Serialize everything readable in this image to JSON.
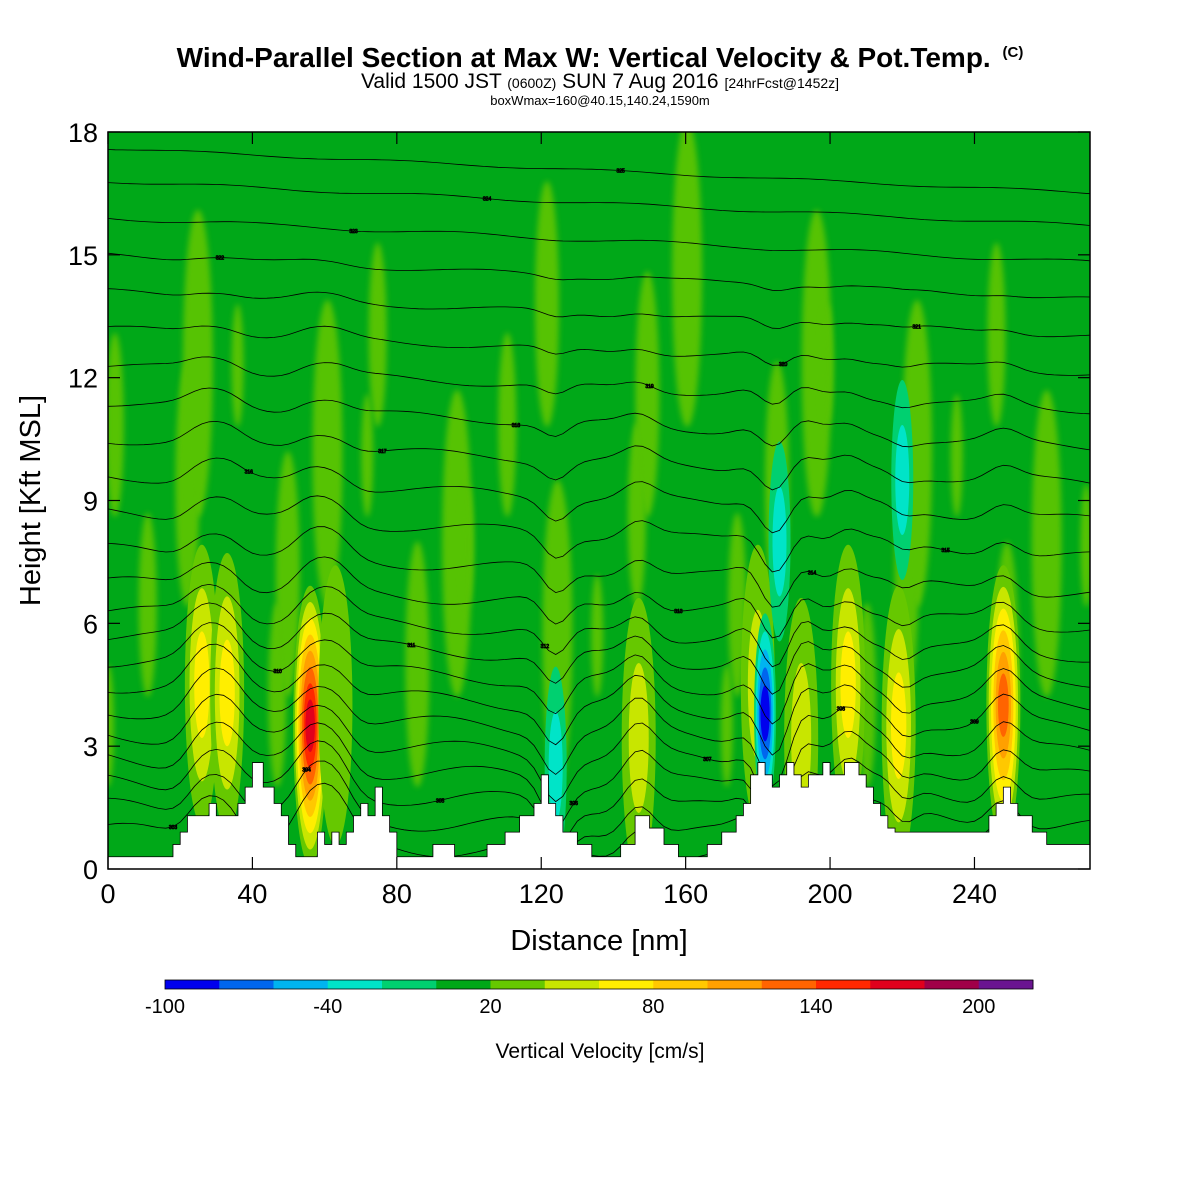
{
  "title": "Wind-Parallel Section at Max W: Vertical Velocity & Pot.Temp.",
  "copyright": "(C)",
  "subtitle": {
    "valid": "Valid 1500 JST",
    "utc": "(0600Z)",
    "date": "SUN 7 Aug 2016",
    "forecast": "[24hrFcst@1452z]"
  },
  "boxinfo": "boxWmax=160@40.15,140.24,1590m",
  "chart_data": {
    "type": "heatmap",
    "xlabel": "Distance [nm]",
    "ylabel": "Height [Kft MSL]",
    "xlim": [
      0,
      272
    ],
    "ylim": [
      0,
      18
    ],
    "xticks": [
      0,
      40,
      80,
      120,
      160,
      200,
      240
    ],
    "yticks": [
      0,
      3,
      6,
      9,
      12,
      15,
      18
    ],
    "colorbar": {
      "label": "Vertical Velocity [cm/s]",
      "levels": [
        -100,
        -80,
        -60,
        -40,
        -20,
        0,
        20,
        40,
        60,
        80,
        100,
        120,
        140,
        160,
        180,
        200,
        220
      ],
      "tick_labels": [
        "-100",
        "-40",
        "20",
        "80",
        "140",
        "200"
      ],
      "colors": [
        "#0000ee",
        "#0066ee",
        "#00b4f0",
        "#00e4c8",
        "#00d070",
        "#00a818",
        "#66c800",
        "#c8e600",
        "#ffee00",
        "#ffc800",
        "#ffa000",
        "#ff6400",
        "#ff2800",
        "#e0001c",
        "#a00048",
        "#6a1490"
      ]
    },
    "background_velocity": 10,
    "updrafts": [
      {
        "x": 26,
        "z": 4.5,
        "w": 60
      },
      {
        "x": 33,
        "z": 4.3,
        "w": 70
      },
      {
        "x": 56,
        "z": 3.5,
        "w": 170
      },
      {
        "x": 63,
        "z": 4.0,
        "w": 35
      },
      {
        "x": 147,
        "z": 3.2,
        "w": 50
      },
      {
        "x": 180,
        "z": 4.5,
        "w": 55
      },
      {
        "x": 192,
        "z": 3.2,
        "w": 40
      },
      {
        "x": 205,
        "z": 4.5,
        "w": 75
      },
      {
        "x": 219,
        "z": 3.5,
        "w": 70
      },
      {
        "x": 248,
        "z": 4.0,
        "w": 120
      }
    ],
    "downdrafts": [
      {
        "x": 182,
        "z": 3.8,
        "w": -85
      },
      {
        "x": 186,
        "z": 8.0,
        "w": -30
      },
      {
        "x": 220,
        "z": 9.5,
        "w": -30
      },
      {
        "x": 124,
        "z": 2.5,
        "w": -35
      }
    ],
    "theta_contours": [
      {
        "z0": 0.9,
        "label": "303"
      },
      {
        "z0": 1.5,
        "label": "304"
      },
      {
        "z0": 2.1,
        "label": "305"
      },
      {
        "z0": 2.7,
        "label": "306"
      },
      {
        "z0": 3.3,
        "label": "307"
      },
      {
        "z0": 3.9,
        "label": "308"
      },
      {
        "z0": 4.5,
        "label": "309"
      },
      {
        "z0": 5.1,
        "label": "310"
      },
      {
        "z0": 5.7,
        "label": "311"
      },
      {
        "z0": 6.3,
        "label": "312"
      },
      {
        "z0": 7.0,
        "label": "313"
      },
      {
        "z0": 7.8,
        "label": "314"
      },
      {
        "z0": 8.7,
        "label": "315"
      },
      {
        "z0": 9.6,
        "label": "316"
      },
      {
        "z0": 10.5,
        "label": "317"
      },
      {
        "z0": 11.4,
        "label": "318"
      },
      {
        "z0": 12.3,
        "label": "319"
      },
      {
        "z0": 13.2,
        "label": "320"
      },
      {
        "z0": 14.1,
        "label": "321"
      },
      {
        "z0": 15.0,
        "label": "322"
      },
      {
        "z0": 15.9,
        "label": "323"
      },
      {
        "z0": 16.8,
        "label": "324"
      },
      {
        "z0": 17.6,
        "label": "325"
      }
    ],
    "terrain": {
      "x": [
        0,
        5,
        10,
        15,
        18,
        20,
        22,
        25,
        28,
        30,
        33,
        36,
        38,
        40,
        43,
        46,
        48,
        50,
        52,
        55,
        58,
        60,
        62,
        64,
        66,
        68,
        70,
        72,
        74,
        76,
        78,
        80,
        84,
        90,
        96,
        100,
        105,
        110,
        114,
        118,
        120,
        122,
        124,
        126,
        130,
        134,
        138,
        142,
        146,
        150,
        154,
        158,
        162,
        166,
        170,
        174,
        176,
        178,
        180,
        182,
        184,
        186,
        188,
        190,
        192,
        194,
        196,
        198,
        200,
        202,
        204,
        206,
        208,
        210,
        212,
        214,
        216,
        218,
        222,
        228,
        234,
        240,
        244,
        246,
        248,
        250,
        252,
        256,
        260,
        264,
        268,
        272
      ],
      "z": [
        0.3,
        0.3,
        0.3,
        0.3,
        0.6,
        0.9,
        1.3,
        1.3,
        1.6,
        1.3,
        1.3,
        1.6,
        2.0,
        2.6,
        2.0,
        1.6,
        1.3,
        0.6,
        0.3,
        0.3,
        0.9,
        0.6,
        0.9,
        0.6,
        0.9,
        1.3,
        1.6,
        1.3,
        2.0,
        1.3,
        0.9,
        0.3,
        0.3,
        0.6,
        0.3,
        0.3,
        0.6,
        0.9,
        1.3,
        1.6,
        2.3,
        1.6,
        1.3,
        0.9,
        0.6,
        0.3,
        0.3,
        0.6,
        1.3,
        1.0,
        0.6,
        0.3,
        0.3,
        0.6,
        0.9,
        1.3,
        1.6,
        2.3,
        2.6,
        2.3,
        2.0,
        2.3,
        2.6,
        2.3,
        2.0,
        2.3,
        2.3,
        2.6,
        2.3,
        2.3,
        2.6,
        2.6,
        2.3,
        2.0,
        1.6,
        1.3,
        1.0,
        0.9,
        0.9,
        0.9,
        0.9,
        0.9,
        1.3,
        1.6,
        2.0,
        1.6,
        1.3,
        0.9,
        0.6,
        0.6,
        0.6,
        0.6
      ]
    }
  }
}
